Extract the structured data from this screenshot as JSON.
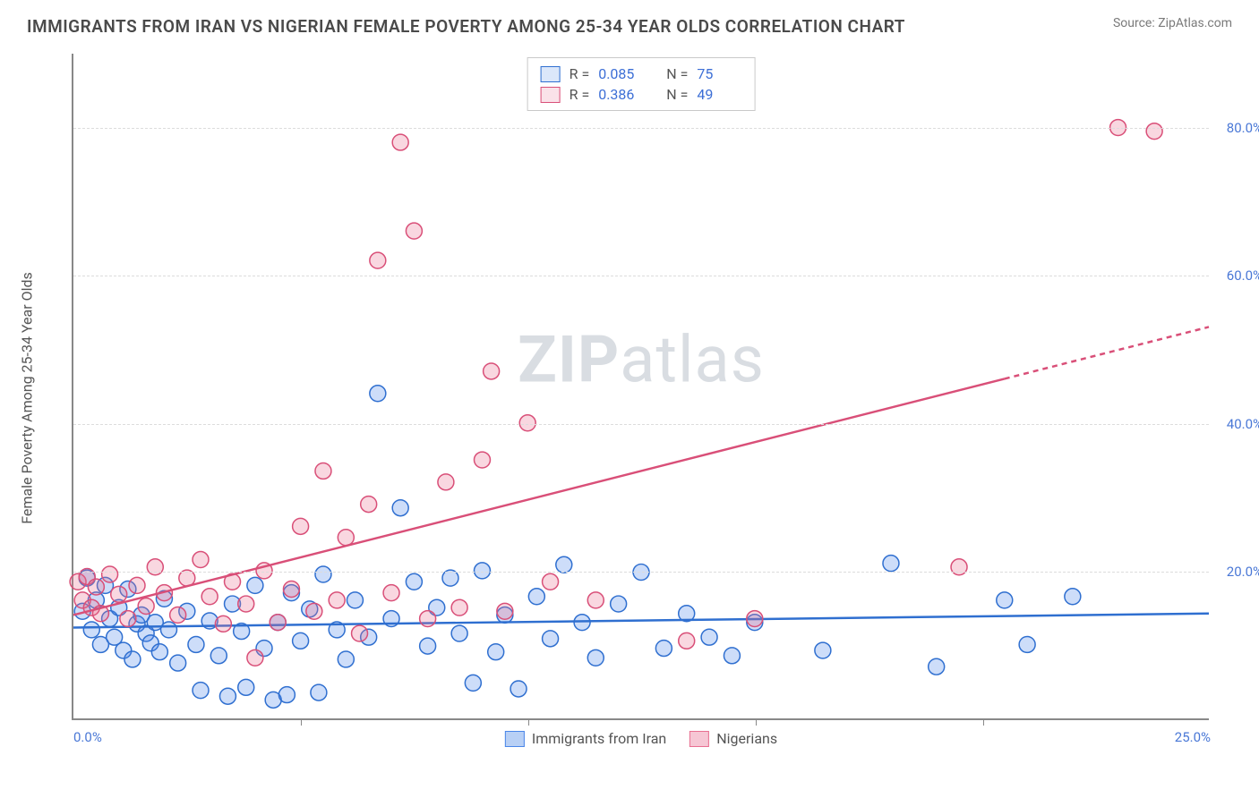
{
  "title": "IMMIGRANTS FROM IRAN VS NIGERIAN FEMALE POVERTY AMONG 25-34 YEAR OLDS CORRELATION CHART",
  "source_label": "Source: ZipAtlas.com",
  "y_axis_label": "Female Poverty Among 25-34 Year Olds",
  "watermark": {
    "bold": "ZIP",
    "rest": "atlas"
  },
  "chart": {
    "type": "scatter",
    "xlim": [
      0,
      25
    ],
    "ylim": [
      0,
      90
    ],
    "x_ticks": [
      0,
      5,
      10,
      15,
      20,
      25
    ],
    "x_tick_labels": [
      "0.0%",
      "",
      "",
      "",
      "",
      "25.0%"
    ],
    "y_ticks": [
      20,
      40,
      60,
      80
    ],
    "y_tick_labels": [
      "20.0%",
      "40.0%",
      "60.0%",
      "80.0%"
    ],
    "grid_color": "#dcdcdc",
    "background_color": "#ffffff",
    "axis_color": "#888888",
    "tick_label_color": "#4a78d6",
    "marker_radius": 9,
    "marker_stroke_width": 1.5,
    "marker_fill_opacity": 0.28,
    "trend_line_width": 2.5,
    "series": [
      {
        "name": "Immigrants from Iran",
        "color": "#4a86e8",
        "stroke": "#2f6fd0",
        "R": "0.085",
        "N": "75",
        "trend": {
          "x1": 0,
          "y1": 12.3,
          "x2": 25,
          "y2": 14.2,
          "dash_from_x": 25
        },
        "points": [
          [
            0.2,
            14.5
          ],
          [
            0.3,
            19
          ],
          [
            0.4,
            12
          ],
          [
            0.5,
            16
          ],
          [
            0.6,
            10
          ],
          [
            0.7,
            18
          ],
          [
            0.8,
            13.5
          ],
          [
            0.9,
            11
          ],
          [
            1.0,
            15
          ],
          [
            1.1,
            9.2
          ],
          [
            1.2,
            17.5
          ],
          [
            1.3,
            8
          ],
          [
            1.4,
            12.8
          ],
          [
            1.5,
            14
          ],
          [
            1.6,
            11.5
          ],
          [
            1.7,
            10.2
          ],
          [
            1.8,
            13
          ],
          [
            1.9,
            9
          ],
          [
            2.0,
            16.2
          ],
          [
            2.1,
            12
          ],
          [
            2.3,
            7.5
          ],
          [
            2.5,
            14.5
          ],
          [
            2.7,
            10
          ],
          [
            2.8,
            3.8
          ],
          [
            3.0,
            13.2
          ],
          [
            3.2,
            8.5
          ],
          [
            3.4,
            3
          ],
          [
            3.5,
            15.5
          ],
          [
            3.7,
            11.8
          ],
          [
            3.8,
            4.2
          ],
          [
            4.0,
            18
          ],
          [
            4.2,
            9.5
          ],
          [
            4.4,
            2.5
          ],
          [
            4.5,
            13
          ],
          [
            4.7,
            3.2
          ],
          [
            4.8,
            17
          ],
          [
            5.0,
            10.5
          ],
          [
            5.2,
            14.8
          ],
          [
            5.4,
            3.5
          ],
          [
            5.5,
            19.5
          ],
          [
            5.8,
            12
          ],
          [
            6.0,
            8
          ],
          [
            6.2,
            16
          ],
          [
            6.5,
            11
          ],
          [
            6.7,
            44
          ],
          [
            7.0,
            13.5
          ],
          [
            7.2,
            28.5
          ],
          [
            7.5,
            18.5
          ],
          [
            7.8,
            9.8
          ],
          [
            8.0,
            15
          ],
          [
            8.3,
            19
          ],
          [
            8.5,
            11.5
          ],
          [
            8.8,
            4.8
          ],
          [
            9.0,
            20
          ],
          [
            9.3,
            9
          ],
          [
            9.5,
            14
          ],
          [
            9.8,
            4
          ],
          [
            10.2,
            16.5
          ],
          [
            10.5,
            10.8
          ],
          [
            10.8,
            20.8
          ],
          [
            11.2,
            13
          ],
          [
            11.5,
            8.2
          ],
          [
            12.0,
            15.5
          ],
          [
            12.5,
            19.8
          ],
          [
            13.0,
            9.5
          ],
          [
            13.5,
            14.2
          ],
          [
            14.0,
            11
          ],
          [
            14.5,
            8.5
          ],
          [
            15.0,
            13
          ],
          [
            16.5,
            9.2
          ],
          [
            18.0,
            21
          ],
          [
            19.0,
            7
          ],
          [
            20.5,
            16
          ],
          [
            21.0,
            10
          ],
          [
            22.0,
            16.5
          ]
        ]
      },
      {
        "name": "Nigerians",
        "color": "#e86f91",
        "stroke": "#d94f78",
        "R": "0.386",
        "N": "49",
        "trend": {
          "x1": 0,
          "y1": 14,
          "x2": 25,
          "y2": 53,
          "dash_from_x": 20.5
        },
        "points": [
          [
            0.1,
            18.5
          ],
          [
            0.2,
            16
          ],
          [
            0.3,
            19.2
          ],
          [
            0.4,
            15
          ],
          [
            0.5,
            17.8
          ],
          [
            0.6,
            14.2
          ],
          [
            0.8,
            19.5
          ],
          [
            1.0,
            16.8
          ],
          [
            1.2,
            13.5
          ],
          [
            1.4,
            18
          ],
          [
            1.6,
            15.2
          ],
          [
            1.8,
            20.5
          ],
          [
            2.0,
            17
          ],
          [
            2.3,
            14
          ],
          [
            2.5,
            19
          ],
          [
            2.8,
            21.5
          ],
          [
            3.0,
            16.5
          ],
          [
            3.3,
            12.8
          ],
          [
            3.5,
            18.5
          ],
          [
            3.8,
            15.5
          ],
          [
            4.0,
            8.2
          ],
          [
            4.2,
            20
          ],
          [
            4.5,
            13
          ],
          [
            4.8,
            17.5
          ],
          [
            5.0,
            26
          ],
          [
            5.3,
            14.5
          ],
          [
            5.5,
            33.5
          ],
          [
            5.8,
            16
          ],
          [
            6.0,
            24.5
          ],
          [
            6.3,
            11.5
          ],
          [
            6.5,
            29
          ],
          [
            6.7,
            62
          ],
          [
            7.0,
            17
          ],
          [
            7.2,
            78
          ],
          [
            7.5,
            66
          ],
          [
            7.8,
            13.5
          ],
          [
            8.2,
            32
          ],
          [
            8.5,
            15
          ],
          [
            9.0,
            35
          ],
          [
            9.2,
            47
          ],
          [
            9.5,
            14.5
          ],
          [
            10.0,
            40
          ],
          [
            10.5,
            18.5
          ],
          [
            11.5,
            16
          ],
          [
            13.5,
            10.5
          ],
          [
            15.0,
            13.5
          ],
          [
            19.5,
            20.5
          ],
          [
            23.0,
            80
          ],
          [
            23.8,
            79.5
          ]
        ]
      }
    ]
  },
  "bottom_legend": [
    {
      "label": "Immigrants from Iran",
      "fill": "#b8d0f5",
      "stroke": "#4a86e8"
    },
    {
      "label": "Nigerians",
      "fill": "#f6c6d4",
      "stroke": "#e86f91"
    }
  ]
}
